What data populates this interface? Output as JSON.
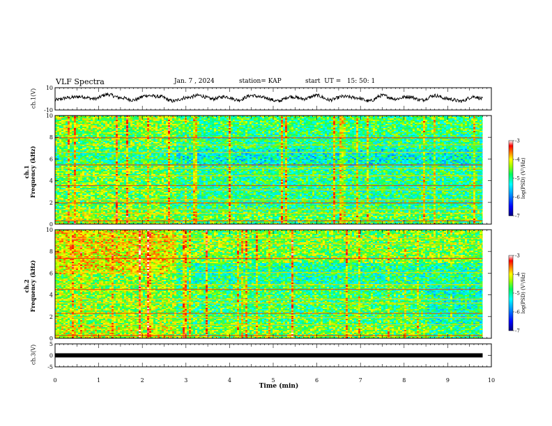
{
  "header": {
    "title": "VLF Spectra",
    "date": "Jan. 7 , 2024",
    "station": "station= KAP",
    "start": "start  UT =   15: 50: 1"
  },
  "colors": {
    "waveform": "#000000",
    "colormap": [
      "#000080",
      "#0000ff",
      "#00a0ff",
      "#00ffff",
      "#00ff80",
      "#80ff00",
      "#ffff00",
      "#ff8000",
      "#ff0000",
      "#ffffff"
    ]
  },
  "chart_data": [
    {
      "type": "line",
      "panel": "ch1-waveform",
      "ylabel": "ch.1(V)",
      "ylim": [
        -10,
        10
      ],
      "yticks": [
        "10",
        "-10"
      ],
      "xlim": [
        0,
        10
      ],
      "x_samples": [
        0,
        0.3,
        0.6,
        0.9,
        1.2,
        1.5,
        1.8,
        2.1,
        2.4,
        2.7,
        3.0,
        3.3,
        3.6,
        3.9,
        4.2,
        4.5,
        4.8,
        5.1,
        5.4,
        5.7,
        6.0,
        6.3,
        6.6,
        6.9,
        7.2,
        7.5,
        7.8,
        8.1,
        8.4,
        8.7,
        9.0,
        9.3,
        9.6,
        9.8
      ],
      "y_samples": [
        -1,
        1,
        2,
        0,
        4,
        1,
        -1,
        3,
        2,
        -2,
        1,
        3,
        0,
        2,
        -1,
        3,
        1,
        -2,
        2,
        0,
        3,
        -1,
        2,
        1,
        -2,
        3,
        0,
        2,
        -1,
        3,
        0,
        -2,
        2,
        0
      ]
    },
    {
      "type": "heatmap",
      "panel": "ch1-spectrogram",
      "ylabel": "ch.1\nFrequency (kHz)",
      "xlim": [
        0,
        10
      ],
      "ylim": [
        0,
        10
      ],
      "yticks": [
        "0",
        "2",
        "4",
        "6",
        "8",
        "10"
      ],
      "colorbar": {
        "label": "log(PSD) (V²/Hz)",
        "range": [
          -7,
          -3
        ],
        "ticks": [
          "-3",
          "-4",
          "-5",
          "-6",
          "-7"
        ]
      },
      "data_end_min": 9.8,
      "level_change_min": 2.75,
      "tone_lines_khz": [
        0.3,
        1.0,
        1.35,
        1.95,
        2.25,
        3.15,
        3.55,
        4.45,
        5.15,
        5.45,
        6.6,
        7.3,
        7.95
      ]
    },
    {
      "type": "heatmap",
      "panel": "ch2-spectrogram",
      "ylabel": "ch.2\nFrequency (kHz)",
      "xlim": [
        0,
        10
      ],
      "ylim": [
        0,
        10
      ],
      "yticks": [
        "0",
        "2",
        "4",
        "6",
        "8",
        "10"
      ],
      "colorbar": {
        "label": "log(PSD) (V²/Hz)",
        "range": [
          -7,
          -3
        ],
        "ticks": [
          "-3",
          "-4",
          "-5",
          "-6",
          "-7"
        ]
      },
      "data_end_min": 9.8,
      "level_change_min": 2.75,
      "tone_lines_khz": [
        0.25,
        1.25,
        1.9,
        2.3,
        3.25,
        3.6,
        4.5,
        4.95,
        6.05,
        7.35,
        8.7,
        9.2
      ]
    },
    {
      "type": "line",
      "panel": "ch3-waveform",
      "ylabel": "ch.3(V)",
      "ylim": [
        -5,
        5
      ],
      "yticks": [
        "5",
        "0",
        "-5"
      ],
      "xlim": [
        0,
        10
      ],
      "xticks": [
        "0",
        "1",
        "2",
        "3",
        "4",
        "5",
        "6",
        "7",
        "8",
        "9",
        "10"
      ],
      "xlabel": "Time (min)",
      "x_samples": [
        0,
        9.8
      ],
      "y_samples": [
        0,
        0
      ]
    }
  ]
}
